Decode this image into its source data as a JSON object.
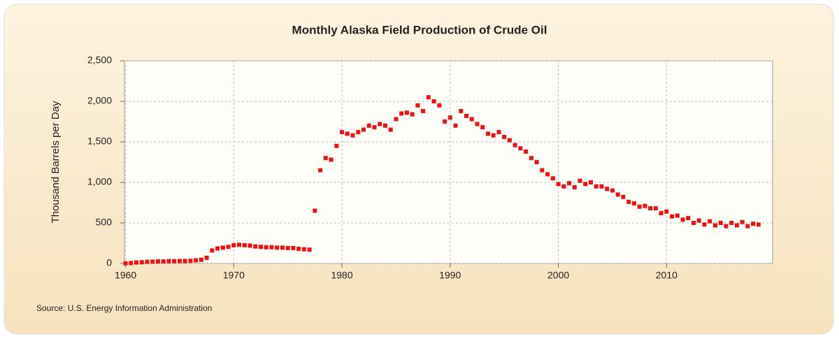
{
  "chart_data": {
    "type": "scatter",
    "title": "Monthly Alaska Field Production of Crude Oil",
    "y_label": "Thousand Barrels per Day",
    "source": "Source: U.S. Energy Information Administration",
    "color": "#ee1111",
    "grid": true,
    "xlim": [
      1959.9,
      2019.8
    ],
    "xticks": [
      1960,
      1970,
      1980,
      1990,
      2000,
      2010
    ],
    "ylim": [
      0,
      2500
    ],
    "yticks": [
      0,
      500,
      {
        "value": 1000,
        "label": "1,000"
      },
      {
        "value": 1500,
        "label": "1,500"
      },
      {
        "value": 2000,
        "label": "2,000"
      },
      {
        "value": 2500,
        "label": "2,500"
      }
    ],
    "x": [
      1960,
      1960.5,
      1961,
      1961.5,
      1962,
      1962.5,
      1963,
      1963.5,
      1964,
      1964.5,
      1965,
      1965.5,
      1966,
      1966.5,
      1967,
      1967.5,
      1968,
      1968.5,
      1969,
      1969.5,
      1970,
      1970.5,
      1971,
      1971.5,
      1972,
      1972.5,
      1973,
      1973.5,
      1974,
      1974.5,
      1975,
      1975.5,
      1976,
      1976.5,
      1977,
      1977.5,
      1978,
      1978.5,
      1979,
      1979.5,
      1980,
      1980.5,
      1981,
      1981.5,
      1982,
      1982.5,
      1983,
      1983.5,
      1984,
      1984.5,
      1985,
      1985.5,
      1986,
      1986.5,
      1987,
      1987.5,
      1988,
      1988.5,
      1989,
      1989.5,
      1990,
      1990.5,
      1991,
      1991.5,
      1992,
      1992.5,
      1993,
      1993.5,
      1994,
      1994.5,
      1995,
      1995.5,
      1996,
      1996.5,
      1997,
      1997.5,
      1998,
      1998.5,
      1999,
      1999.5,
      2000,
      2000.5,
      2001,
      2001.5,
      2002,
      2002.5,
      2003,
      2003.5,
      2004,
      2004.5,
      2005,
      2005.5,
      2006,
      2006.5,
      2007,
      2007.5,
      2008,
      2008.5,
      2009,
      2009.5,
      2010,
      2010.5,
      2011,
      2011.5,
      2012,
      2012.5,
      2013,
      2013.5,
      2014,
      2014.5,
      2015,
      2015.5,
      2016,
      2016.5,
      2017,
      2017.5,
      2018,
      2018.5
    ],
    "values": [
      2,
      5,
      12,
      15,
      20,
      22,
      25,
      25,
      28,
      28,
      30,
      30,
      32,
      38,
      45,
      70,
      160,
      185,
      195,
      205,
      225,
      230,
      225,
      220,
      210,
      205,
      200,
      200,
      195,
      195,
      190,
      190,
      180,
      175,
      170,
      650,
      1150,
      1300,
      1280,
      1450,
      1620,
      1600,
      1580,
      1620,
      1650,
      1700,
      1680,
      1720,
      1700,
      1650,
      1780,
      1850,
      1860,
      1840,
      1950,
      1880,
      2050,
      2000,
      1950,
      1750,
      1800,
      1700,
      1880,
      1820,
      1780,
      1720,
      1680,
      1600,
      1580,
      1620,
      1560,
      1520,
      1460,
      1420,
      1380,
      1300,
      1250,
      1150,
      1100,
      1050,
      980,
      950,
      990,
      940,
      1020,
      980,
      1000,
      950,
      950,
      920,
      900,
      850,
      820,
      760,
      740,
      700,
      710,
      680,
      680,
      620,
      640,
      580,
      590,
      540,
      560,
      500,
      530,
      480,
      520,
      470,
      500,
      460,
      500,
      470,
      510,
      460,
      490,
      480
    ]
  }
}
